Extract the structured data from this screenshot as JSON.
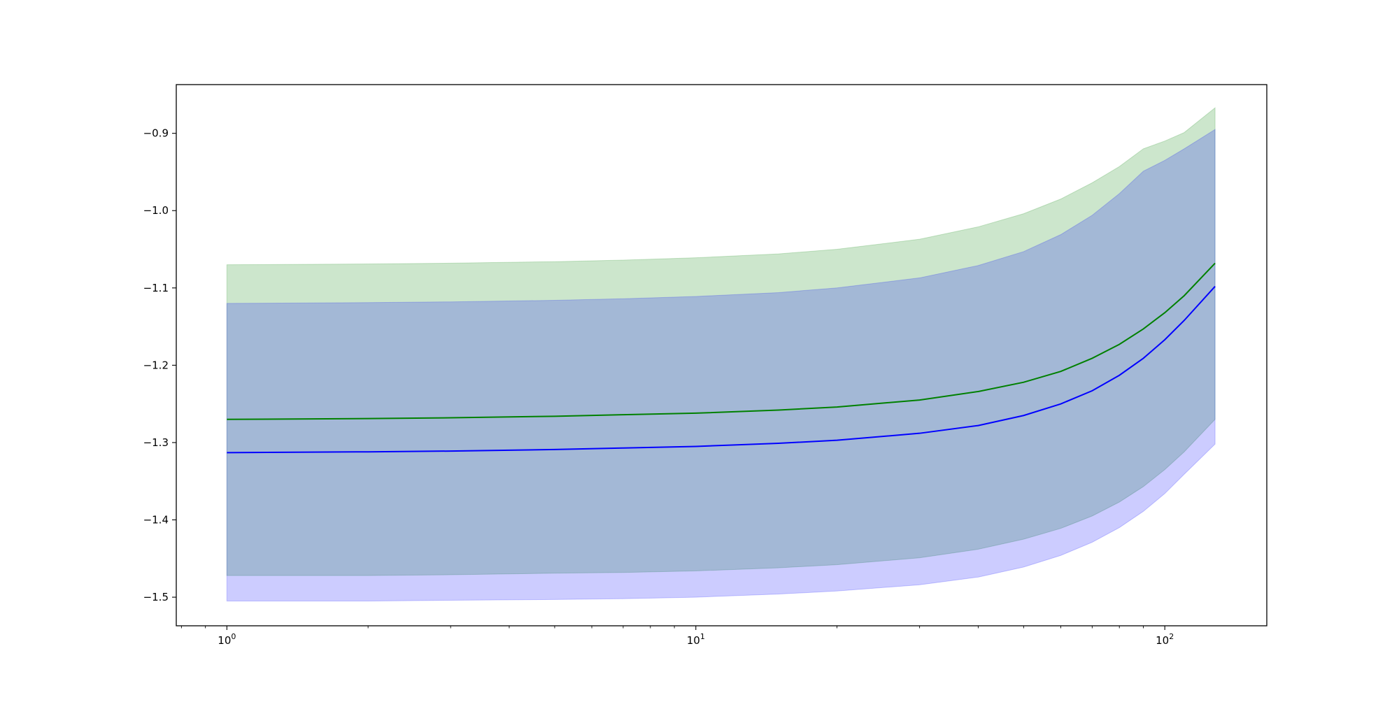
{
  "chart_data": {
    "type": "line",
    "title": "",
    "xlabel": "",
    "ylabel": "",
    "x_scale": "log",
    "xlim": [
      0.78,
      165
    ],
    "ylim": [
      -1.537,
      -0.837
    ],
    "grid": false,
    "x_ticks": [
      {
        "value": 1,
        "label_base": "10",
        "label_exp": "0"
      },
      {
        "value": 10,
        "label_base": "10",
        "label_exp": "1"
      },
      {
        "value": 100,
        "label_base": "10",
        "label_exp": "2"
      }
    ],
    "y_ticks": [
      {
        "value": -0.9,
        "label": "−0.9"
      },
      {
        "value": -1.0,
        "label": "−1.0"
      },
      {
        "value": -1.1,
        "label": "−1.1"
      },
      {
        "value": -1.2,
        "label": "−1.2"
      },
      {
        "value": -1.3,
        "label": "−1.3"
      },
      {
        "value": -1.4,
        "label": "−1.4"
      },
      {
        "value": -1.5,
        "label": "−1.5"
      }
    ],
    "series": [
      {
        "color": "#008000",
        "band_color": "#008000",
        "band_opacity": 0.2,
        "x": [
          1,
          2,
          3,
          5,
          7,
          10,
          15,
          20,
          30,
          40,
          50,
          60,
          70,
          80,
          90,
          100,
          110,
          128
        ],
        "y": [
          -1.27,
          -1.269,
          -1.268,
          -1.266,
          -1.264,
          -1.262,
          -1.258,
          -1.254,
          -1.245,
          -1.234,
          -1.222,
          -1.208,
          -1.191,
          -1.173,
          -1.153,
          -1.132,
          -1.11,
          -1.068
        ],
        "upper": [
          -1.07,
          -1.069,
          -1.068,
          -1.066,
          -1.064,
          -1.061,
          -1.056,
          -1.05,
          -1.037,
          -1.021,
          -1.004,
          -0.985,
          -0.964,
          -0.943,
          -0.92,
          -0.91,
          -0.899,
          -0.867
        ],
        "lower": [
          -1.472,
          -1.472,
          -1.471,
          -1.469,
          -1.468,
          -1.466,
          -1.462,
          -1.458,
          -1.449,
          -1.438,
          -1.425,
          -1.411,
          -1.395,
          -1.377,
          -1.357,
          -1.335,
          -1.312,
          -1.27
        ]
      },
      {
        "color": "#0000ff",
        "band_color": "#0000ff",
        "band_opacity": 0.2,
        "x": [
          1,
          2,
          3,
          5,
          7,
          10,
          15,
          20,
          30,
          40,
          50,
          60,
          70,
          80,
          90,
          100,
          110,
          128
        ],
        "y": [
          -1.313,
          -1.312,
          -1.311,
          -1.309,
          -1.307,
          -1.305,
          -1.301,
          -1.297,
          -1.288,
          -1.278,
          -1.265,
          -1.25,
          -1.233,
          -1.213,
          -1.191,
          -1.167,
          -1.142,
          -1.098
        ],
        "upper": [
          -1.12,
          -1.119,
          -1.118,
          -1.116,
          -1.114,
          -1.111,
          -1.106,
          -1.1,
          -1.087,
          -1.071,
          -1.053,
          -1.031,
          -1.006,
          -0.978,
          -0.949,
          -0.935,
          -0.92,
          -0.895
        ],
        "lower": [
          -1.505,
          -1.505,
          -1.504,
          -1.503,
          -1.502,
          -1.5,
          -1.496,
          -1.492,
          -1.484,
          -1.474,
          -1.461,
          -1.446,
          -1.429,
          -1.41,
          -1.389,
          -1.366,
          -1.341,
          -1.302
        ]
      }
    ]
  }
}
